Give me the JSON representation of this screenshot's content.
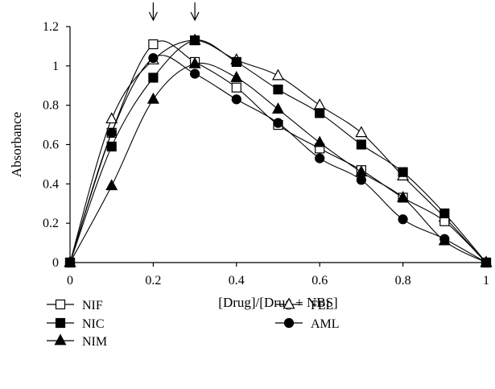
{
  "chart_data": {
    "type": "line",
    "xlabel": "[Drug]/[Drug + NBS]",
    "ylabel": "Absorbance",
    "xlim": [
      0,
      1
    ],
    "ylim": [
      0,
      1.2
    ],
    "x_ticks": [
      0,
      0.2,
      0.4,
      0.6,
      0.8,
      1
    ],
    "x_tick_labels": [
      "0",
      "0.2",
      "0.4",
      "0.6",
      "0.8",
      "1"
    ],
    "y_ticks": [
      0,
      0.2,
      0.4,
      0.6,
      0.8,
      1,
      1.2
    ],
    "y_tick_labels": [
      "0",
      "0.2",
      "0.4",
      "0.6",
      "0.8",
      "1",
      "1.2"
    ],
    "grid": false,
    "legend_position": "bottom",
    "annotations": [
      {
        "type": "arrow-down",
        "x": 0.2
      },
      {
        "type": "arrow-down",
        "x": 0.3
      }
    ],
    "x": [
      0,
      0.1,
      0.2,
      0.3,
      0.4,
      0.5,
      0.6,
      0.7,
      0.8,
      0.9,
      1.0
    ],
    "series": [
      {
        "name": "NIF",
        "marker": "open-square",
        "values": [
          0,
          0.66,
          1.11,
          1.02,
          0.89,
          0.7,
          0.58,
          0.47,
          0.33,
          0.21,
          0
        ]
      },
      {
        "name": "NIC",
        "marker": "filled-square",
        "values": [
          0,
          0.59,
          0.94,
          1.13,
          1.02,
          0.88,
          0.76,
          0.6,
          0.46,
          0.25,
          0
        ]
      },
      {
        "name": "NIM",
        "marker": "filled-triangle",
        "values": [
          0,
          0.39,
          0.83,
          1.01,
          0.94,
          0.78,
          0.61,
          0.46,
          0.33,
          0.11,
          0
        ]
      },
      {
        "name": "FEL",
        "marker": "open-triangle",
        "values": [
          0,
          0.73,
          1.03,
          1.13,
          1.03,
          0.95,
          0.8,
          0.66,
          0.44,
          0.23,
          0
        ]
      },
      {
        "name": "AML",
        "marker": "filled-circle",
        "values": [
          0,
          0.66,
          1.04,
          0.96,
          0.83,
          0.71,
          0.53,
          0.42,
          0.22,
          0.12,
          0
        ]
      }
    ]
  }
}
